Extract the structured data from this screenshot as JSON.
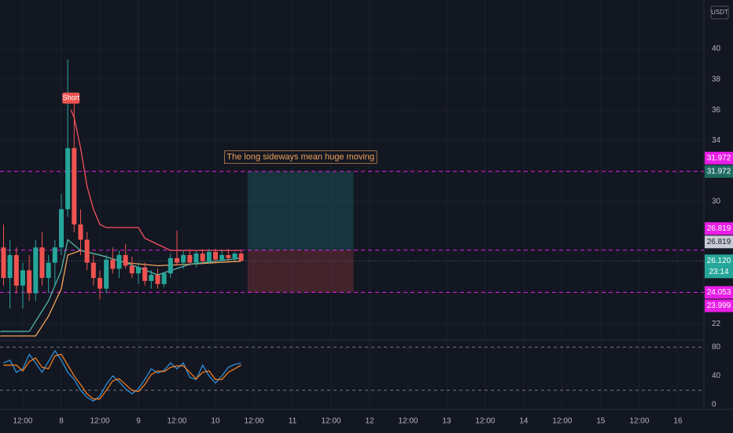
{
  "chart_data": [
    {
      "type": "candlestick",
      "x": [
        -18,
        -16,
        -14,
        -12,
        -10,
        -8,
        -6,
        -4,
        -2,
        0,
        2,
        4,
        6,
        8,
        10,
        12,
        14,
        16,
        18,
        20,
        22,
        24,
        26,
        28,
        30,
        32,
        34,
        36,
        38,
        40,
        42,
        44,
        46,
        48,
        50,
        52,
        54,
        56
      ],
      "open": [
        27,
        25,
        26.5,
        24.5,
        25.5,
        24,
        27,
        25,
        26,
        27,
        29.5,
        33.5,
        28.5,
        27.5,
        26,
        25,
        24.3,
        26.2,
        25.6,
        26.5,
        25.8,
        25.3,
        25.7,
        24.8,
        25.2,
        24.6,
        25.3,
        26.3,
        26.0,
        26.5,
        26.0,
        26.6,
        26.1,
        26.7,
        26.2,
        26.5,
        26.3,
        26.6
      ],
      "high": [
        28.5,
        27.5,
        27,
        26,
        26.5,
        27.5,
        28,
        26.5,
        27.5,
        30.5,
        39.3,
        37,
        29.5,
        28,
        26.5,
        25.5,
        26.5,
        27,
        26.8,
        27.2,
        26.4,
        26,
        26,
        25.5,
        25.6,
        25.4,
        26.6,
        28.1,
        26.8,
        26.9,
        26.8,
        26.9,
        26.9,
        26.9,
        26.8,
        26.9,
        26.7,
        26.8
      ],
      "low": [
        24.5,
        23,
        24,
        23,
        23.5,
        23.5,
        24.5,
        24,
        24.5,
        26.5,
        29,
        28,
        26.5,
        25.5,
        24.5,
        23.6,
        24,
        25.3,
        25,
        25.6,
        25,
        24.6,
        24.5,
        24.3,
        24.3,
        24.4,
        25,
        25.8,
        25.6,
        25.8,
        25.7,
        25.9,
        25.9,
        26.0,
        26.0,
        26.1,
        26.1,
        26.2
      ],
      "close": [
        25,
        26.5,
        24.5,
        25.5,
        24,
        27,
        25,
        26,
        27,
        29.5,
        33.5,
        28.5,
        27.5,
        26,
        25,
        24.3,
        26.2,
        25.6,
        26.5,
        25.8,
        25.3,
        25.7,
        24.8,
        25.2,
        24.6,
        25.3,
        26.3,
        26.0,
        26.5,
        26.0,
        26.6,
        26.1,
        26.7,
        26.2,
        26.5,
        26.3,
        26.6,
        26.12
      ],
      "up_color": "#26a69a",
      "down_color": "#ef5350",
      "lines": [
        {
          "color": "#f7525f",
          "x": [
            3,
            4,
            6,
            8,
            10,
            12,
            14,
            24,
            26,
            30,
            34,
            56
          ],
          "values": [
            36.0,
            35.5,
            33.5,
            31,
            29.5,
            28.5,
            28.3,
            28.3,
            27.6,
            27.2,
            26.8,
            26.8
          ]
        },
        {
          "color": "#f0a35a",
          "x": [
            -19,
            -8,
            -4,
            0,
            2,
            6,
            12,
            20,
            30,
            40,
            56
          ],
          "values": [
            21.2,
            21.2,
            22.5,
            24.3,
            26.5,
            26.8,
            26.5,
            26.0,
            25.8,
            25.9,
            26.1
          ]
        },
        {
          "color": "#4fb3a5",
          "x": [
            -19,
            -10,
            -4,
            0,
            2,
            6,
            12,
            20,
            30,
            40,
            56
          ],
          "values": [
            21.5,
            21.5,
            23.5,
            25.5,
            27.5,
            26.8,
            26.5,
            26.0,
            25.2,
            25.9,
            26.3
          ]
        }
      ],
      "signal": "Short",
      "hlines": [
        31.972,
        26.819,
        24.053
      ],
      "last_price": 26.12,
      "position": {
        "x_start": 58,
        "x_end": 91,
        "entry": 26.819,
        "target": 31.972,
        "stop": 24.053
      },
      "annotation": "The long sideways mean huge moving",
      "currency": "USDT",
      "badges": [
        {
          "value": 31.972,
          "color": "#e91ee6"
        },
        {
          "value": 31.972,
          "color": "#1f6b63"
        },
        {
          "value": 26.819,
          "color": "#e91ee6"
        },
        {
          "value": 26.819,
          "color": "#c9ccd4"
        },
        {
          "value": 26.12,
          "label": "26.120",
          "sub": "23:14",
          "color": "#26a69a"
        },
        {
          "value": 24.053,
          "color": "#e91ee6"
        },
        {
          "value": 23.999,
          "color": "#e91ee6"
        }
      ],
      "xlim": [
        -19.1,
        200.1
      ],
      "ylim": [
        20.93,
        43.2
      ],
      "xticks": [
        {
          "value": -12,
          "label": "12:00"
        },
        {
          "value": 0,
          "label": "8"
        },
        {
          "value": 12,
          "label": "12:00"
        },
        {
          "value": 24,
          "label": "9"
        },
        {
          "value": 36,
          "label": "12:00"
        },
        {
          "value": 48,
          "label": "10"
        },
        {
          "value": 60,
          "label": "12:00"
        },
        {
          "value": 72,
          "label": "11"
        },
        {
          "value": 84,
          "label": "12:00"
        },
        {
          "value": 96,
          "label": "12"
        },
        {
          "value": 108,
          "label": "12:00"
        },
        {
          "value": 120,
          "label": "13"
        },
        {
          "value": 132,
          "label": "12:00"
        },
        {
          "value": 144,
          "label": "14"
        },
        {
          "value": 156,
          "label": "12:00"
        },
        {
          "value": 168,
          "label": "15"
        },
        {
          "value": 180,
          "label": "12:00"
        },
        {
          "value": 192,
          "label": "16"
        }
      ],
      "yticks": [
        22,
        30,
        34,
        36,
        38,
        40
      ]
    },
    {
      "type": "line",
      "x": [
        -18,
        -16,
        -14,
        -12,
        -10,
        -8,
        -6,
        -4,
        -2,
        0,
        2,
        4,
        6,
        8,
        10,
        12,
        14,
        16,
        18,
        20,
        22,
        24,
        26,
        28,
        30,
        32,
        34,
        36,
        38,
        40,
        42,
        44,
        46,
        48,
        50,
        52,
        54,
        56
      ],
      "series": [
        {
          "color": "#2e8fd8",
          "values": [
            58,
            62,
            45,
            50,
            70,
            58,
            45,
            60,
            75,
            62,
            45,
            35,
            20,
            10,
            5,
            12,
            28,
            40,
            32,
            22,
            15,
            22,
            35,
            50,
            44,
            48,
            58,
            50,
            58,
            38,
            35,
            55,
            40,
            30,
            40,
            52,
            56,
            58
          ]
        },
        {
          "color": "#f27d1f",
          "values": [
            55,
            55,
            55,
            47,
            60,
            65,
            52,
            50,
            68,
            70,
            55,
            40,
            28,
            15,
            8,
            8,
            20,
            33,
            36,
            28,
            20,
            18,
            28,
            42,
            47,
            46,
            52,
            54,
            54,
            45,
            36,
            45,
            47,
            35,
            35,
            45,
            50,
            55
          ]
        }
      ],
      "hlines": [
        80,
        20
      ],
      "xlim": [
        -19.1,
        200.1
      ],
      "ylim": [
        -6.6,
        89.9
      ],
      "yticks": [
        0,
        40,
        80
      ]
    }
  ]
}
